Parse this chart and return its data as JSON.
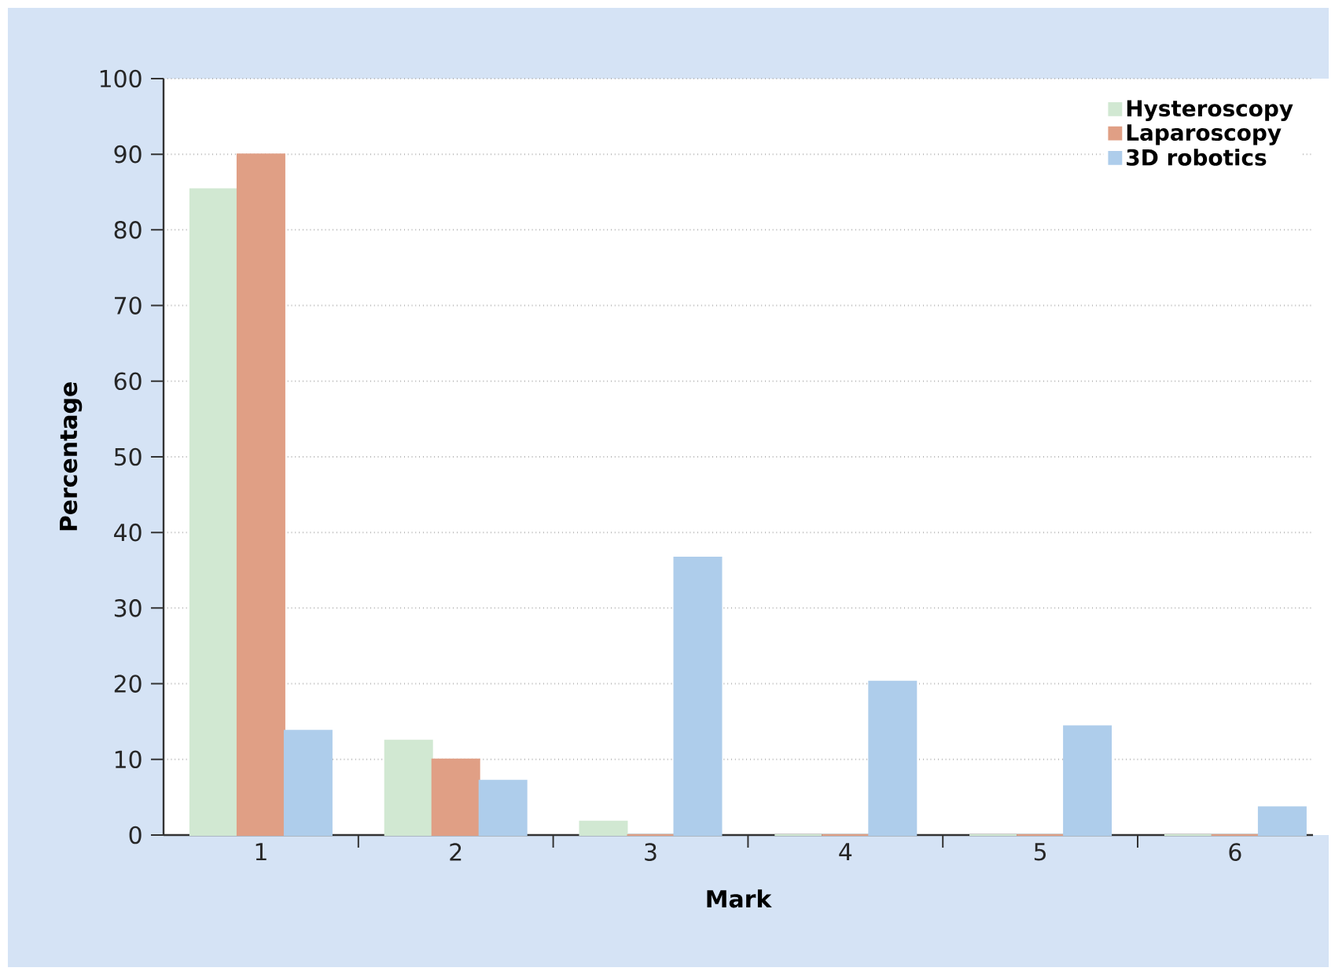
{
  "chart_data": {
    "type": "bar",
    "xlabel": "Mark",
    "ylabel": "Percentage",
    "categories": [
      "1",
      "2",
      "3",
      "4",
      "5",
      "6"
    ],
    "series": [
      {
        "name": "Hysteroscopy",
        "color": "#d1e8d2",
        "values": [
          85.4,
          12.5,
          1.8,
          0,
          0,
          0
        ]
      },
      {
        "name": "Laparoscopy",
        "color": "#e09f85",
        "values": [
          90,
          10,
          0,
          0,
          0,
          0
        ]
      },
      {
        "name": "3D robotics",
        "color": "#aecdeb",
        "values": [
          13.8,
          7.2,
          36.7,
          20.3,
          14.4,
          3.7
        ]
      }
    ],
    "ylim": [
      0,
      100
    ],
    "yticks": [
      0,
      10,
      20,
      30,
      40,
      50,
      60,
      70,
      80,
      90,
      100
    ],
    "grid": "y",
    "legend": "top right"
  }
}
